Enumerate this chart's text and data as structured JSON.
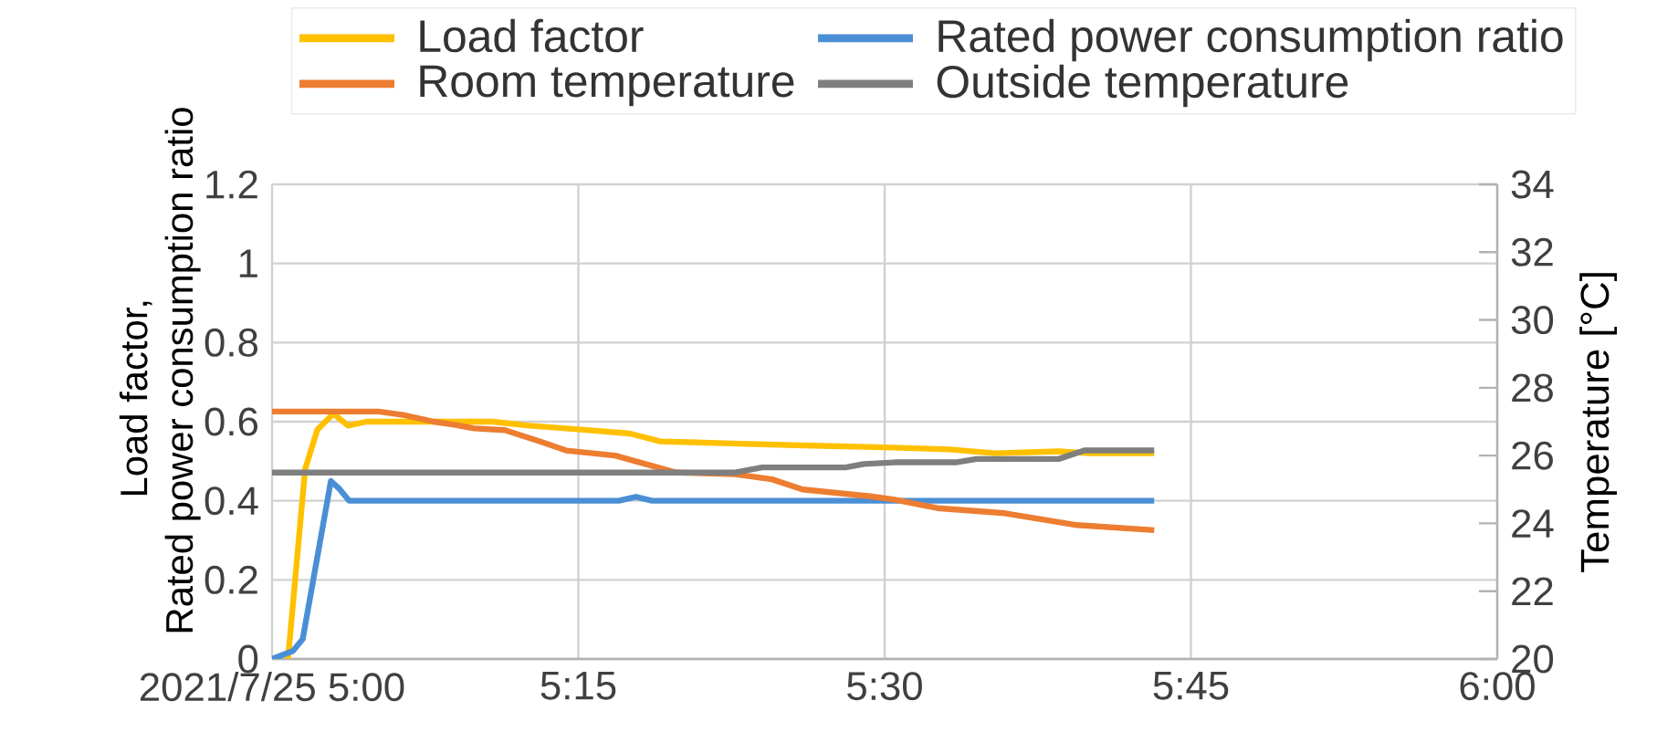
{
  "chart_data": {
    "type": "line",
    "ylabel": "Load factor,\nRated power consumption ratio",
    "y2label": "Temperature [°C]",
    "xlim": [
      5.0,
      6.0
    ],
    "xticks": [
      {
        "value": 5.0,
        "label": "2021/7/25 5:00"
      },
      {
        "value": 5.25,
        "label": "5:15"
      },
      {
        "value": 5.5,
        "label": "5:30"
      },
      {
        "value": 5.75,
        "label": "5:45"
      },
      {
        "value": 6.0,
        "label": "6:00"
      }
    ],
    "ylim": [
      0,
      1.2
    ],
    "yticks": [
      0,
      0.2,
      0.4,
      0.6,
      0.8,
      1,
      1.2
    ],
    "y2lim": [
      20,
      34
    ],
    "y2ticks": [
      20,
      22,
      24,
      26,
      28,
      30,
      32,
      34
    ],
    "grid": true,
    "legend": "top",
    "marker": "none",
    "line_style": "solid",
    "series": [
      {
        "name": "Load factor",
        "color": "#ffc000",
        "x": [
          5.013,
          5.027,
          5.037,
          5.05,
          5.062,
          5.077,
          5.18,
          5.21,
          5.252,
          5.292,
          5.317,
          5.375,
          5.433,
          5.5,
          5.553,
          5.59,
          5.642,
          5.667,
          5.72
        ],
        "values": [
          0,
          0.48,
          0.58,
          0.62,
          0.59,
          0.6,
          0.6,
          0.59,
          0.58,
          0.57,
          0.55,
          0.545,
          0.54,
          0.535,
          0.53,
          0.52,
          0.525,
          0.52,
          0.52
        ]
      },
      {
        "name": "Rated power consumption ratio",
        "color": "#4a8fd6",
        "x": [
          5.0,
          5.017,
          5.025,
          5.048,
          5.055,
          5.063,
          5.283,
          5.297,
          5.31,
          5.72
        ],
        "values": [
          0,
          0.02,
          0.05,
          0.45,
          0.43,
          0.4,
          0.4,
          0.41,
          0.4,
          0.4
        ]
      },
      {
        "name": "Room temperature",
        "color": "#ed7d31",
        "axis": "y2",
        "x": [
          5.0,
          5.087,
          5.107,
          5.132,
          5.15,
          5.165,
          5.19,
          5.22,
          5.24,
          5.28,
          5.3,
          5.33,
          5.378,
          5.408,
          5.433,
          5.488,
          5.508,
          5.543,
          5.598,
          5.657,
          5.72
        ],
        "values": [
          27.3,
          27.3,
          27.2,
          27.0,
          26.9,
          26.8,
          26.75,
          26.4,
          26.15,
          26.0,
          25.8,
          25.5,
          25.45,
          25.3,
          25.0,
          24.8,
          24.7,
          24.45,
          24.3,
          23.95,
          23.8
        ]
      },
      {
        "name": "Outside temperature",
        "color": "#7f7f7f",
        "axis": "y2",
        "x": [
          5.0,
          5.378,
          5.4,
          5.468,
          5.483,
          5.508,
          5.558,
          5.575,
          5.642,
          5.663,
          5.72
        ],
        "values": [
          25.5,
          25.5,
          25.65,
          25.65,
          25.75,
          25.8,
          25.8,
          25.9,
          25.9,
          26.15,
          26.15
        ]
      }
    ]
  }
}
